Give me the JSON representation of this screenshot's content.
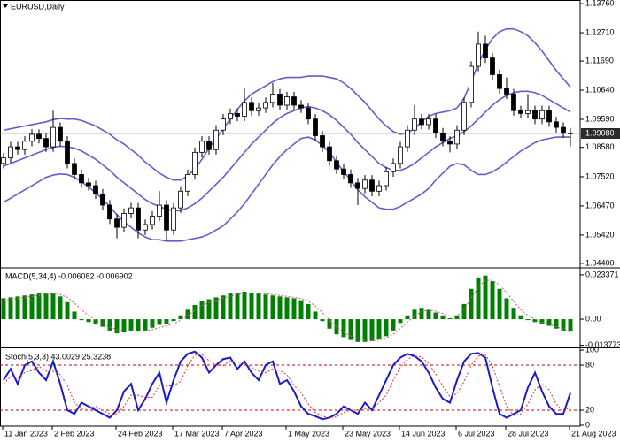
{
  "chart_data": [
    {
      "type": "candlestick",
      "title": "EURUSD,Daily",
      "bull_color": "#ffffff",
      "bear_color": "#000000",
      "open": [
        1.08,
        1.082,
        1.086,
        1.085,
        1.088,
        1.0905,
        1.089,
        1.086,
        1.093,
        1.088,
        1.08,
        1.076,
        1.073,
        1.072,
        1.069,
        1.065,
        1.06,
        1.057,
        1.062,
        1.064,
        1.056,
        1.058,
        1.061,
        1.065,
        1.056,
        1.064,
        1.07,
        1.076,
        1.084,
        1.088,
        1.085,
        1.092,
        1.096,
        1.098,
        1.097,
        1.102,
        1.099,
        1.1,
        1.102,
        1.105,
        1.101,
        1.104,
        1.101,
        1.1,
        1.096,
        1.09,
        1.086,
        1.081,
        1.078,
        1.076,
        1.073,
        1.071,
        1.074,
        1.07,
        1.072,
        1.077,
        1.08,
        1.086,
        1.092,
        1.096,
        1.094,
        1.096,
        1.091,
        1.088,
        1.087,
        1.092,
        1.102,
        1.115,
        1.123,
        1.118,
        1.112,
        1.107,
        1.105,
        1.099,
        1.098,
        1.099,
        1.096,
        1.099,
        1.095,
        1.093,
        1.091
      ],
      "high": [
        1.0838,
        1.0878,
        1.0878,
        1.0898,
        1.0923,
        1.0923,
        1.0908,
        1.099,
        1.0948,
        1.0898,
        1.0818,
        1.0778,
        1.0748,
        1.0738,
        1.0708,
        1.0668,
        1.0618,
        1.0638,
        1.0658,
        1.0658,
        1.0598,
        1.0628,
        1.07,
        1.0668,
        1.0658,
        1.0718,
        1.0778,
        1.0858,
        1.0898,
        1.0898,
        1.0938,
        1.0978,
        1.0998,
        1.0998,
        1.107,
        1.1038,
        1.1018,
        1.1038,
        1.109,
        1.1068,
        1.1058,
        1.1058,
        1.1028,
        1.1018,
        1.0978,
        1.0918,
        1.0878,
        1.0828,
        1.0798,
        1.0778,
        1.0748,
        1.0758,
        1.0758,
        1.0738,
        1.0788,
        1.0818,
        1.0878,
        1.0938,
        1.101,
        1.0978,
        1.0978,
        1.0978,
        1.0928,
        1.0898,
        1.0938,
        1.1038,
        1.1168,
        1.1275,
        1.126,
        1.1198,
        1.1138,
        1.111,
        1.1068,
        1.1008,
        1.105,
        1.1008,
        1.1008,
        1.1008,
        1.0968,
        1.0948,
        1.0928
      ],
      "low": [
        1.0782,
        1.0802,
        1.0832,
        1.0832,
        1.0862,
        1.0872,
        1.0842,
        1.0842,
        1.0862,
        1.0782,
        1.0742,
        1.0712,
        1.0702,
        1.0672,
        1.0632,
        1.0582,
        1.053,
        1.0552,
        1.0602,
        1.053,
        1.0542,
        1.0562,
        1.0592,
        1.052,
        1.0542,
        1.0622,
        1.0682,
        1.0742,
        1.0822,
        1.0832,
        1.0832,
        1.0902,
        1.0942,
        1.0952,
        1.0952,
        1.0972,
        1.0972,
        1.0982,
        1.1002,
        1.0992,
        1.0992,
        1.0992,
        1.0982,
        1.0942,
        1.0882,
        1.0842,
        1.0792,
        1.0762,
        1.0742,
        1.0712,
        1.065,
        1.0692,
        1.0682,
        1.0682,
        1.0702,
        1.0752,
        1.0782,
        1.0842,
        1.0902,
        1.0922,
        1.0922,
        1.0892,
        1.0862,
        1.084,
        1.0852,
        1.0902,
        1.1002,
        1.1132,
        1.1162,
        1.1102,
        1.1052,
        1.1032,
        1.0972,
        1.0962,
        1.0962,
        1.0942,
        1.0942,
        1.0932,
        1.0912,
        1.0892,
        1.0862
      ],
      "close": [
        1.082,
        1.086,
        1.085,
        1.088,
        1.0905,
        1.089,
        1.086,
        1.093,
        1.088,
        1.08,
        1.076,
        1.073,
        1.072,
        1.069,
        1.065,
        1.06,
        1.057,
        1.062,
        1.064,
        1.056,
        1.058,
        1.061,
        1.065,
        1.056,
        1.064,
        1.07,
        1.076,
        1.084,
        1.088,
        1.085,
        1.092,
        1.096,
        1.098,
        1.097,
        1.102,
        1.099,
        1.1,
        1.102,
        1.105,
        1.101,
        1.104,
        1.101,
        1.1,
        1.096,
        1.09,
        1.086,
        1.081,
        1.078,
        1.076,
        1.073,
        1.071,
        1.074,
        1.07,
        1.072,
        1.077,
        1.08,
        1.086,
        1.092,
        1.096,
        1.094,
        1.096,
        1.091,
        1.088,
        1.087,
        1.092,
        1.102,
        1.115,
        1.123,
        1.118,
        1.112,
        1.107,
        1.105,
        1.099,
        1.098,
        1.099,
        1.096,
        1.099,
        1.095,
        1.093,
        1.091,
        1.0908
      ],
      "bands": {
        "color": "#6a5acd",
        "upper": [
          1.092,
          1.0925,
          1.093,
          1.0935,
          1.094,
          1.0945,
          1.095,
          1.0958,
          1.0962,
          1.096,
          1.096,
          1.0955,
          1.0945,
          1.0935,
          1.092,
          1.0905,
          1.0885,
          1.087,
          1.085,
          1.083,
          1.0805,
          1.0785,
          1.0765,
          1.075,
          1.074,
          1.074,
          1.0755,
          1.078,
          1.0815,
          1.0855,
          1.089,
          1.0925,
          1.096,
          1.0995,
          1.1025,
          1.105,
          1.1065,
          1.108,
          1.1095,
          1.1105,
          1.111,
          1.111,
          1.111,
          1.1115,
          1.1115,
          1.1115,
          1.111,
          1.1105,
          1.109,
          1.107,
          1.1045,
          1.102,
          1.099,
          1.096,
          1.0935,
          1.0915,
          1.0905,
          1.091,
          1.0925,
          1.095,
          1.097,
          1.098,
          1.0985,
          1.099,
          1.1,
          1.1035,
          1.1095,
          1.116,
          1.121,
          1.125,
          1.1275,
          1.1285,
          1.1285,
          1.1275,
          1.126,
          1.1235,
          1.1205,
          1.117,
          1.1135,
          1.1105,
          1.1075
        ],
        "middle": [
          1.079,
          1.08,
          1.081,
          1.082,
          1.083,
          1.084,
          1.085,
          1.0858,
          1.0862,
          1.086,
          1.0855,
          1.0845,
          1.083,
          1.0815,
          1.0795,
          1.0775,
          1.075,
          1.073,
          1.071,
          1.069,
          1.067,
          1.0655,
          1.0645,
          1.0635,
          1.063,
          1.063,
          1.064,
          1.0655,
          1.0675,
          1.07,
          1.0725,
          1.075,
          1.078,
          1.081,
          1.084,
          1.087,
          1.0895,
          1.092,
          1.0945,
          1.0965,
          1.098,
          1.099,
          1.1,
          1.1005,
          1.1,
          1.099,
          1.0975,
          1.0955,
          1.093,
          1.0905,
          1.0875,
          1.085,
          1.0825,
          1.08,
          1.0785,
          1.0775,
          1.0775,
          1.0785,
          1.08,
          1.082,
          1.084,
          1.086,
          1.0875,
          1.089,
          1.09,
          1.0915,
          1.0935,
          1.096,
          1.0985,
          1.101,
          1.103,
          1.1045,
          1.1055,
          1.106,
          1.106,
          1.1055,
          1.1045,
          1.103,
          1.1015,
          1.1,
          1.0985
        ],
        "lower": [
          1.066,
          1.0675,
          1.069,
          1.0705,
          1.072,
          1.0735,
          1.075,
          1.0758,
          1.0762,
          1.076,
          1.075,
          1.0735,
          1.0715,
          1.0695,
          1.067,
          1.0645,
          1.0615,
          1.059,
          1.057,
          1.055,
          1.0535,
          1.0525,
          1.0525,
          1.052,
          1.052,
          1.052,
          1.0525,
          1.053,
          1.0535,
          1.0545,
          1.056,
          1.0575,
          1.06,
          1.0625,
          1.0655,
          1.069,
          1.0725,
          1.076,
          1.0795,
          1.0825,
          1.085,
          1.087,
          1.089,
          1.0895,
          1.0885,
          1.0865,
          1.084,
          1.0805,
          1.077,
          1.074,
          1.0705,
          1.068,
          1.066,
          1.064,
          1.0635,
          1.0635,
          1.0645,
          1.066,
          1.0675,
          1.069,
          1.071,
          1.074,
          1.0765,
          1.079,
          1.08,
          1.0795,
          1.0775,
          1.076,
          1.076,
          1.077,
          1.0785,
          1.0805,
          1.0825,
          1.0845,
          1.086,
          1.0875,
          1.0885,
          1.089,
          1.0895,
          1.0895,
          1.0895
        ]
      },
      "current_price": {
        "value": 1.0908,
        "label": "1.09080"
      },
      "ylim": [
        1.0427,
        1.1389
      ],
      "yticks": [
        {
          "value": 1.1376,
          "label": "1.13760"
        },
        {
          "value": 1.1271,
          "label": "1.12710"
        },
        {
          "value": 1.1169,
          "label": "1.11690"
        },
        {
          "value": 1.1064,
          "label": "1.10640"
        },
        {
          "value": 1.0959,
          "label": "1.09590"
        },
        {
          "value": 1.0858,
          "label": "1.08580"
        },
        {
          "value": 1.0752,
          "label": "1.07520"
        },
        {
          "value": 1.0647,
          "label": "1.06470"
        },
        {
          "value": 1.0542,
          "label": "1.05420"
        },
        {
          "value": 1.044,
          "label": "1.04400"
        }
      ]
    },
    {
      "type": "bar",
      "title": "MACD(5,34,4) -0.006082 -0.006902",
      "color": "#008000",
      "values": [
        0.011,
        0.0115,
        0.012,
        0.0125,
        0.013,
        0.0135,
        0.0135,
        0.014,
        0.012,
        0.009,
        0.004,
        -0.0005,
        -0.0015,
        -0.0025,
        -0.004,
        -0.006,
        -0.0075,
        -0.007,
        -0.006,
        -0.0065,
        -0.006,
        -0.0045,
        -0.003,
        -0.0025,
        -0.001,
        0.002,
        0.005,
        0.0075,
        0.0095,
        0.0105,
        0.0115,
        0.0125,
        0.0135,
        0.014,
        0.0145,
        0.014,
        0.0135,
        0.013,
        0.0125,
        0.012,
        0.0115,
        0.011,
        0.01,
        0.008,
        0.004,
        -0.001,
        -0.005,
        -0.008,
        -0.0095,
        -0.011,
        -0.012,
        -0.012,
        -0.0115,
        -0.0105,
        -0.009,
        -0.006,
        -0.002,
        0.002,
        0.005,
        0.006,
        0.005,
        0.0035,
        0.002,
        0.0005,
        0.002,
        0.008,
        0.016,
        0.022,
        0.023,
        0.02,
        0.016,
        0.011,
        0.006,
        0.002,
        -0.0005,
        -0.0015,
        -0.0025,
        -0.0035,
        -0.005,
        -0.006,
        -0.0061
      ],
      "signal": {
        "color": "#e0508a",
        "dash": true,
        "values": [
          0.01,
          0.0105,
          0.011,
          0.0115,
          0.012,
          0.0125,
          0.013,
          0.0133,
          0.013,
          0.0115,
          0.0085,
          0.005,
          0.002,
          -0.0005,
          -0.0025,
          -0.004,
          -0.0055,
          -0.0063,
          -0.0063,
          -0.0064,
          -0.0062,
          -0.0055,
          -0.0045,
          -0.0035,
          -0.0025,
          -0.0005,
          0.002,
          0.0045,
          0.007,
          0.0088,
          0.01,
          0.0112,
          0.0122,
          0.013,
          0.0137,
          0.0139,
          0.0137,
          0.0134,
          0.013,
          0.0125,
          0.012,
          0.0115,
          0.0108,
          0.0095,
          0.007,
          0.0035,
          -0.0005,
          -0.004,
          -0.0068,
          -0.009,
          -0.0105,
          -0.0113,
          -0.0115,
          -0.011,
          -0.01,
          -0.008,
          -0.005,
          -0.0015,
          0.0015,
          0.004,
          0.0048,
          0.0042,
          0.003,
          0.0015,
          0.0018,
          0.005,
          0.011,
          0.017,
          0.0205,
          0.0205,
          0.018,
          0.014,
          0.0095,
          0.005,
          0.002,
          0.0,
          -0.0015,
          -0.0025,
          -0.004,
          -0.0052,
          -0.0069
        ]
      },
      "ylim": [
        -0.0149,
        0.0266
      ],
      "yticks": [
        0.023371,
        {
          "value": 0,
          "label": "0.00"
        },
        -0.013773
      ]
    },
    {
      "type": "line",
      "title": "Stoch(5,3,3) 43.0029 25.3238",
      "categories": [
        "11 Jan 2023",
        null,
        null,
        null,
        null,
        null,
        null,
        "2 Feb 2023",
        null,
        null,
        null,
        null,
        null,
        null,
        null,
        null,
        "24 Feb 2023",
        null,
        null,
        null,
        null,
        null,
        null,
        null,
        "17 Mar 2023",
        null,
        null,
        null,
        null,
        null,
        null,
        "7 Apr 2023",
        null,
        null,
        null,
        null,
        null,
        null,
        null,
        null,
        "1 May 2023",
        null,
        null,
        null,
        null,
        null,
        null,
        null,
        "23 May 2023",
        null,
        null,
        null,
        null,
        null,
        null,
        null,
        "14 Jun 2023",
        null,
        null,
        null,
        null,
        null,
        null,
        null,
        "6 Jul 2023",
        null,
        null,
        null,
        null,
        null,
        null,
        "28 Jul 2023",
        null,
        null,
        null,
        null,
        null,
        null,
        null,
        null,
        "21 Aug 2023"
      ],
      "series": [
        {
          "color": "#1a1acc",
          "dash": false,
          "values": [
            60,
            75,
            55,
            80,
            85,
            70,
            60,
            85,
            55,
            20,
            15,
            30,
            25,
            20,
            15,
            10,
            20,
            45,
            55,
            20,
            35,
            55,
            70,
            30,
            60,
            85,
            95,
            98,
            90,
            70,
            80,
            88,
            90,
            75,
            85,
            70,
            60,
            80,
            85,
            55,
            60,
            45,
            25,
            15,
            12,
            8,
            10,
            15,
            25,
            20,
            15,
            30,
            20,
            40,
            60,
            80,
            90,
            95,
            92,
            85,
            70,
            50,
            35,
            30,
            60,
            85,
            95,
            96,
            90,
            50,
            15,
            10,
            15,
            20,
            50,
            70,
            45,
            25,
            15,
            15,
            43
          ]
        },
        {
          "color": "#e03030",
          "dash": true,
          "values": [
            55,
            65,
            63,
            70,
            73,
            78,
            72,
            72,
            67,
            53,
            30,
            22,
            23,
            25,
            20,
            15,
            15,
            25,
            40,
            40,
            37,
            37,
            53,
            52,
            53,
            58,
            80,
            93,
            94,
            86,
            80,
            79,
            86,
            84,
            83,
            77,
            72,
            70,
            75,
            73,
            67,
            53,
            43,
            28,
            17,
            12,
            10,
            11,
            17,
            20,
            20,
            22,
            22,
            30,
            40,
            60,
            77,
            88,
            92,
            91,
            82,
            68,
            52,
            38,
            42,
            58,
            80,
            92,
            94,
            79,
            52,
            25,
            13,
            15,
            28,
            47,
            55,
            47,
            28,
            18,
            25
          ]
        }
      ],
      "levels": [
        20,
        80
      ],
      "level_color": "#cc0000",
      "ylim": [
        -1.2,
        102.4
      ],
      "yticks": [
        100,
        80,
        20,
        0
      ]
    }
  ]
}
